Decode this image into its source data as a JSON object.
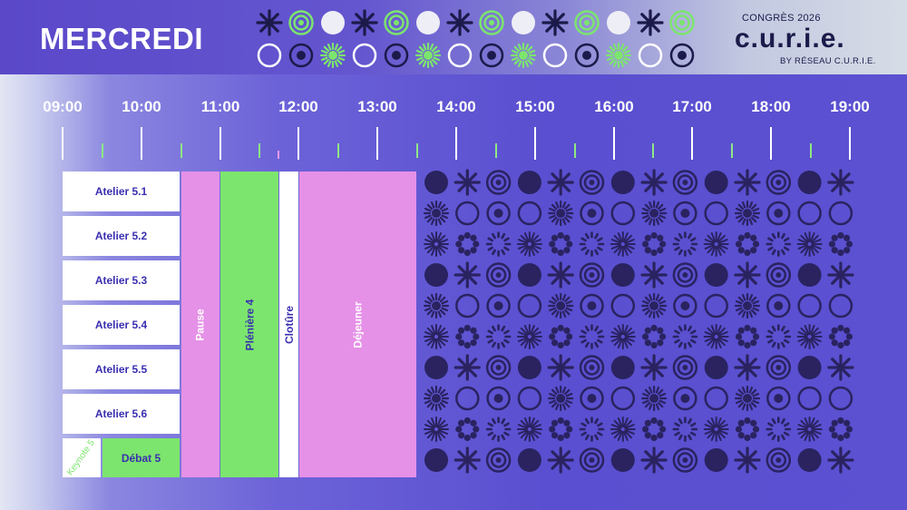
{
  "header": {
    "day": "MERCREDI",
    "logo_top": "CONGRÈS 2026",
    "logo_word": "c.u.r.i.e.",
    "logo_sub": "BY RÉSEAU C.U.R.I.E."
  },
  "timeline": {
    "hours": [
      "09:00",
      "10:00",
      "11:00",
      "12:00",
      "13:00",
      "14:00",
      "15:00",
      "16:00",
      "17:00",
      "18:00",
      "19:00"
    ]
  },
  "sessions": {
    "atelier_1": "Atelier 5.1",
    "atelier_2": "Atelier 5.2",
    "atelier_3": "Atelier 5.3",
    "atelier_4": "Atelier 5.4",
    "atelier_5": "Atelier 5.5",
    "atelier_6": "Atelier 5.6",
    "keynote": "Keynote 5",
    "debat": "Débat 5",
    "pause": "Pause",
    "pleniere": "Plénière 4",
    "cloture": "Clotûre",
    "dejeuner": "Déjeuner"
  },
  "colors": {
    "purple": "#5a4fd0",
    "pink": "#e591e7",
    "green": "#7ce56d",
    "navy": "#1c1a4a"
  }
}
